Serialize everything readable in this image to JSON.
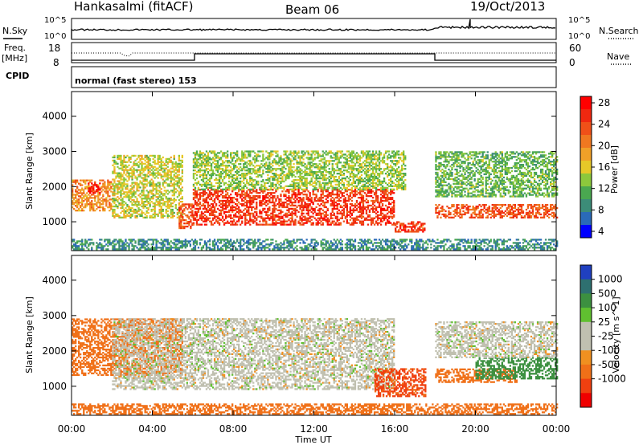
{
  "header": {
    "station": "Hankasalmi (fitACF)",
    "beam": "Beam 06",
    "date": "19/Oct/2013"
  },
  "top_panels": {
    "nsky_label": "N.Sky",
    "nsearch_label": "N.Search",
    "freq_label_1": "Freq.",
    "freq_label_2": "[MHz]",
    "nave_label": "Nave",
    "cpid_label": "CPID",
    "cpid_text": "normal (fast stereo) 153",
    "noise_ticks_left": [
      "10^5",
      "10^0"
    ],
    "noise_ticks_right": [
      "10^5",
      "10^0"
    ],
    "freq_ticks": [
      "18",
      "8"
    ],
    "nave_ticks": [
      "60",
      "0"
    ]
  },
  "colors": {
    "power_scale": [
      "#0000ff",
      "#2a6ab8",
      "#3c8c78",
      "#4aa850",
      "#8cc83c",
      "#e6c828",
      "#f0a028",
      "#f07820",
      "#f05018",
      "#f02810",
      "#ff0000"
    ],
    "velocity_scale": [
      "#2040c0",
      "#2e7070",
      "#3c9040",
      "#60c030",
      "#c0c0b0",
      "#c0c0b0",
      "#f09020",
      "#f07018",
      "#f04010",
      "#f00000"
    ]
  },
  "chart_data": [
    {
      "type": "heatmap",
      "title": "",
      "xlabel": "Time UT",
      "ylabel": "Slant Range [km]",
      "x_ticks": [
        "00:00",
        "04:00",
        "08:00",
        "12:00",
        "16:00",
        "20:00",
        "00:00"
      ],
      "y_ticks": [
        "4000",
        "3000",
        "2000",
        "1000"
      ],
      "xlim_hours": [
        0,
        24
      ],
      "ylim_km": [
        180,
        4700
      ],
      "colorbar_label": "Power [dB]",
      "colorbar_ticks": [
        "28",
        "24",
        "20",
        "16",
        "12",
        "8",
        "4"
      ],
      "colorbar_range": [
        0,
        30
      ],
      "echo_regions": [
        {
          "t_start": 0.0,
          "t_end": 2.0,
          "r_low": 1300,
          "r_high": 2200,
          "value": 20
        },
        {
          "t_start": 0.8,
          "t_end": 1.4,
          "r_low": 1800,
          "r_high": 2100,
          "value": 27
        },
        {
          "t_start": 2.0,
          "t_end": 5.5,
          "r_low": 1100,
          "r_high": 2900,
          "value": 14
        },
        {
          "t_start": 5.3,
          "t_end": 6.0,
          "r_low": 800,
          "r_high": 1500,
          "value": 24
        },
        {
          "t_start": 6.0,
          "t_end": 16.0,
          "r_low": 900,
          "r_high": 1900,
          "value": 26
        },
        {
          "t_start": 6.0,
          "t_end": 16.5,
          "r_low": 1900,
          "r_high": 3000,
          "value": 12
        },
        {
          "t_start": 16.0,
          "t_end": 17.5,
          "r_low": 700,
          "r_high": 1000,
          "value": 26
        },
        {
          "t_start": 18.0,
          "t_end": 24.0,
          "r_low": 1100,
          "r_high": 1500,
          "value": 24
        },
        {
          "t_start": 18.0,
          "t_end": 24.0,
          "r_low": 1700,
          "r_high": 3000,
          "value": 10
        },
        {
          "t_start": 0.0,
          "t_end": 24.0,
          "r_low": 200,
          "r_high": 500,
          "value": 6
        }
      ]
    },
    {
      "type": "heatmap",
      "title": "",
      "xlabel": "Time UT",
      "ylabel": "Slant Range [km]",
      "x_ticks": [
        "00:00",
        "04:00",
        "08:00",
        "12:00",
        "16:00",
        "20:00",
        "00:00"
      ],
      "y_ticks": [
        "4000",
        "3000",
        "2000",
        "1000"
      ],
      "xlim_hours": [
        0,
        24
      ],
      "ylim_km": [
        180,
        4700
      ],
      "colorbar_label": "Velocity [m s^-1]",
      "colorbar_ticks": [
        "1000",
        "500",
        "100",
        "25",
        "-25",
        "-100",
        "-500",
        "-1000"
      ],
      "echo_regions": [
        {
          "t_start": 0.0,
          "t_end": 5.5,
          "r_low": 1300,
          "r_high": 2900,
          "value": -200
        },
        {
          "t_start": 2.0,
          "t_end": 16.0,
          "r_low": 900,
          "r_high": 2900,
          "value": 0
        },
        {
          "t_start": 15.0,
          "t_end": 17.5,
          "r_low": 700,
          "r_high": 1500,
          "value": -600
        },
        {
          "t_start": 18.0,
          "t_end": 22.0,
          "r_low": 1100,
          "r_high": 1500,
          "value": -300
        },
        {
          "t_start": 20.0,
          "t_end": 24.0,
          "r_low": 1200,
          "r_high": 1800,
          "value": 200
        },
        {
          "t_start": 18.0,
          "t_end": 24.0,
          "r_low": 1800,
          "r_high": 2800,
          "value": 0
        },
        {
          "t_start": 0.0,
          "t_end": 24.0,
          "r_low": 200,
          "r_high": 500,
          "value": -150
        }
      ]
    }
  ]
}
